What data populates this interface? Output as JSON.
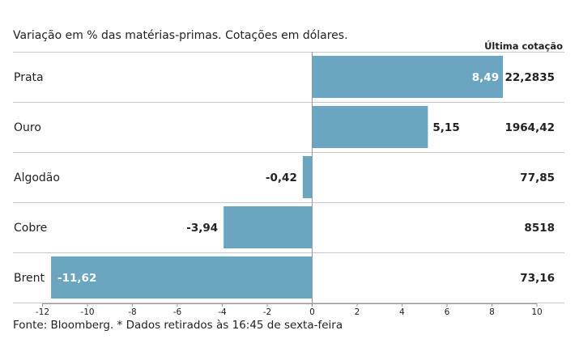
{
  "subtitle": "Variação em % das matérias-primas. Cotações em dólares.",
  "source": "Fonte: Bloomberg.  * Dados retirados às 16:45 de sexta-feira",
  "colors": {
    "bar": "#6aa5c1",
    "grid": "#c8c8c8",
    "axis": "#999999",
    "text": "#222222"
  },
  "chart_data": {
    "type": "bar",
    "orientation": "horizontal",
    "categories": [
      "Prata",
      "Ouro",
      "Algodão",
      "Cobre",
      "Brent"
    ],
    "values": [
      8.49,
      5.15,
      -0.42,
      -3.94,
      -11.62
    ],
    "value_labels": [
      "8,49",
      "5,15",
      "-0,42",
      "-3,94",
      "-11,62"
    ],
    "last_quote_header": "Última cotação",
    "last_quotes": [
      "22,2835",
      "1964,42",
      "77,85",
      "8518",
      "73,16"
    ],
    "xlim": [
      -12,
      10
    ],
    "xticks": [
      -12,
      -10,
      -8,
      -6,
      -4,
      -2,
      0,
      2,
      4,
      6,
      8,
      10
    ],
    "xtick_labels": [
      "-12",
      "-10",
      "-8",
      "-6",
      "-4",
      "-2",
      "0",
      "2",
      "4",
      "6",
      "8",
      "10"
    ],
    "grid": "horizontal separators",
    "legend": "none"
  }
}
